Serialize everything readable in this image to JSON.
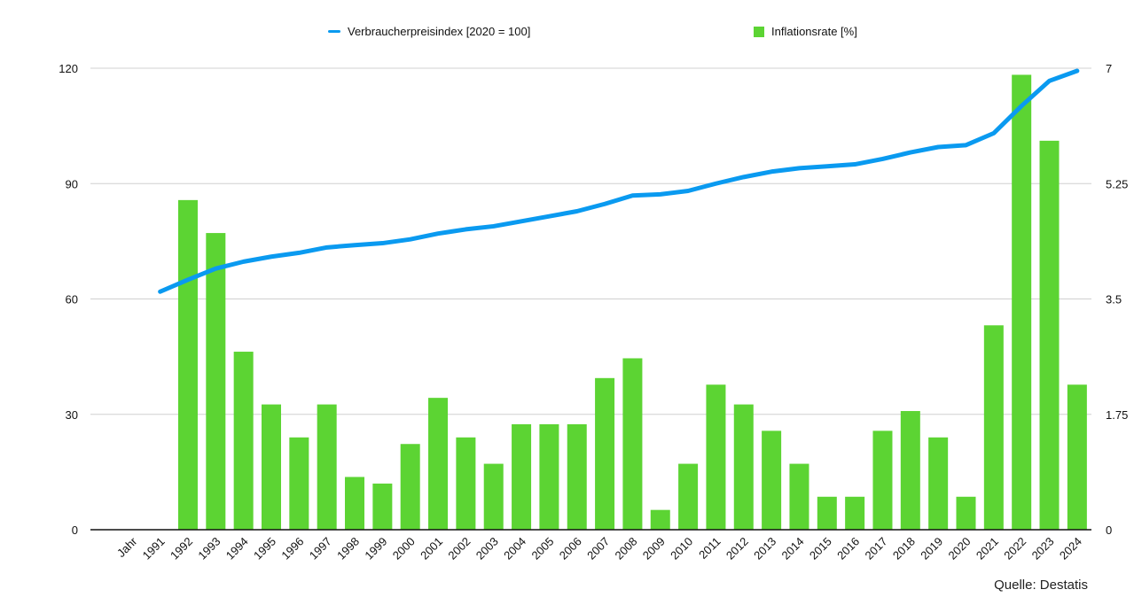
{
  "chart_data": {
    "type": "bar+line",
    "categories": [
      "Jahr",
      "1991",
      "1992",
      "1993",
      "1994",
      "1995",
      "1996",
      "1997",
      "1998",
      "1999",
      "2000",
      "2001",
      "2002",
      "2003",
      "2004",
      "2005",
      "2006",
      "2007",
      "2008",
      "2009",
      "2010",
      "2011",
      "2012",
      "2013",
      "2014",
      "2015",
      "2016",
      "2017",
      "2018",
      "2019",
      "2020",
      "2021",
      "2022",
      "2023",
      "2024"
    ],
    "series": [
      {
        "name": "Verbraucherpreisindex [2020 = 100]",
        "type": "line",
        "axis": "left",
        "color": "#0a9af0",
        "values": [
          null,
          61.9,
          65.0,
          67.9,
          69.7,
          71.0,
          72.0,
          73.4,
          74.0,
          74.5,
          75.5,
          77.0,
          78.1,
          78.9,
          80.2,
          81.5,
          82.8,
          84.7,
          86.9,
          87.2,
          88.1,
          90.0,
          91.7,
          93.1,
          94.0,
          94.5,
          95.0,
          96.4,
          98.1,
          99.5,
          100.0,
          103.1,
          110.2,
          116.7,
          119.3
        ]
      },
      {
        "name": "Inflationsrate [%]",
        "type": "bar",
        "axis": "right",
        "color": "#5cd433",
        "values": [
          null,
          null,
          5.0,
          4.5,
          2.7,
          1.9,
          1.4,
          1.9,
          0.8,
          0.7,
          1.3,
          2.0,
          1.4,
          1.0,
          1.6,
          1.6,
          1.6,
          2.3,
          2.6,
          0.3,
          1.0,
          2.2,
          1.9,
          1.5,
          1.0,
          0.5,
          0.5,
          1.5,
          1.8,
          1.4,
          0.5,
          3.1,
          6.9,
          5.9,
          2.2
        ]
      }
    ],
    "y_left": {
      "ylim": [
        0,
        120
      ],
      "ticks": [
        "0",
        "30",
        "60",
        "90",
        "120"
      ]
    },
    "y_right": {
      "ylim": [
        0,
        7
      ],
      "ticks": [
        "0",
        "1.75",
        "3.5",
        "5.25",
        "7"
      ]
    },
    "grid": true,
    "legend_position": "top"
  },
  "source": "Quelle: Destatis"
}
